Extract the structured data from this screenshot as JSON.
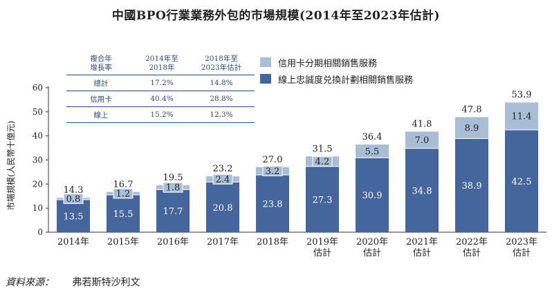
{
  "title": "中國BPO行業業務外包的市場規模(2014年至2023年估計)",
  "source": {
    "label": "資料來源：",
    "value": "弗若斯特沙利文"
  },
  "colors": {
    "dark": "#44669c",
    "light": "#a9bdd7",
    "axis": "#333333",
    "table_line": "#2e4a7a"
  },
  "legend": [
    {
      "label": "信用卡分期相關銷售服務",
      "color": "#a9bdd7"
    },
    {
      "label": "線上忠誠度兑換計劃相關銷售服務",
      "color": "#44669c"
    }
  ],
  "cagr_table": {
    "header": [
      "複合年\n增長率",
      "2014年至\n2018年",
      "2018年至\n2023年估計"
    ],
    "rows": [
      [
        "總計",
        "17.2%",
        "14.8%"
      ],
      [
        "信用卡",
        "40.4%",
        "28.8%"
      ],
      [
        "線上",
        "15.2%",
        "12.3%"
      ]
    ]
  },
  "chart_data": {
    "type": "bar",
    "stacked": true,
    "title": "中國BPO行業業務外包的市場規模(2014年至2023年估計)",
    "ylabel": "市場規模(人民幣十億元)",
    "ylim": [
      0,
      60
    ],
    "yticks": [
      0,
      10,
      20,
      30,
      40,
      50,
      60
    ],
    "categories": [
      "2014年",
      "2015年",
      "2016年",
      "2017年",
      "2018年",
      "2019年\n估計",
      "2020年\n估計",
      "2021年\n估計",
      "2022年\n估計",
      "2023年\n估計"
    ],
    "series": [
      {
        "name": "線上忠誠度兑換計劃相關銷售服務",
        "values": [
          13.5,
          15.5,
          17.7,
          20.8,
          23.8,
          27.3,
          30.9,
          34.8,
          38.9,
          42.5
        ]
      },
      {
        "name": "信用卡分期相關銷售服務",
        "values": [
          0.8,
          1.2,
          1.8,
          2.4,
          3.2,
          4.2,
          5.5,
          7.0,
          8.9,
          11.4
        ]
      }
    ],
    "totals": [
      14.3,
      16.7,
      19.5,
      23.2,
      27.0,
      31.5,
      36.4,
      41.8,
      47.8,
      53.9
    ]
  }
}
